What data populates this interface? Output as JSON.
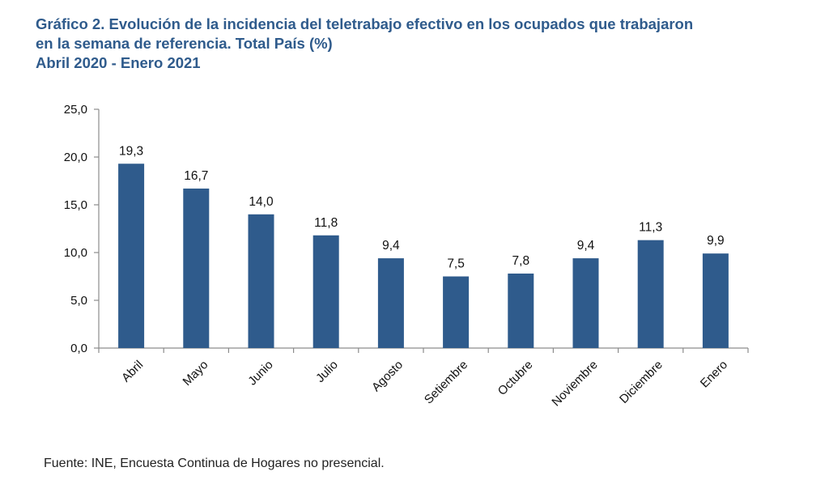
{
  "title_lines": [
    "Gráfico 2. Evolución de la incidencia del teletrabajo efectivo en los ocupados que trabajaron",
    "en la semana de referencia. Total País (%)",
    "Abril 2020 - Enero 2021"
  ],
  "source": "Fuente: INE, Encuesta Continua de Hogares no presencial.",
  "chart_data": {
    "type": "bar",
    "categories": [
      "Abril",
      "Mayo",
      "Junio",
      "Julio",
      "Agosto",
      "Setiembre",
      "Octubre",
      "Noviembre",
      "Diciembre",
      "Enero"
    ],
    "values": [
      19.3,
      16.7,
      14.0,
      11.8,
      9.4,
      7.5,
      7.8,
      9.4,
      11.3,
      9.9
    ],
    "data_labels": [
      "19,3",
      "16,7",
      "14,0",
      "11,8",
      "9,4",
      "7,5",
      "7,8",
      "9,4",
      "11,3",
      "9,9"
    ],
    "yticks": [
      0,
      5,
      10,
      15,
      20,
      25
    ],
    "ytick_labels": [
      "0,0",
      "5,0",
      "10,0",
      "15,0",
      "20,0",
      "25,0"
    ],
    "ylim": [
      0,
      25
    ],
    "bar_color": "#2f5b8c",
    "grid": false,
    "legend": false
  }
}
